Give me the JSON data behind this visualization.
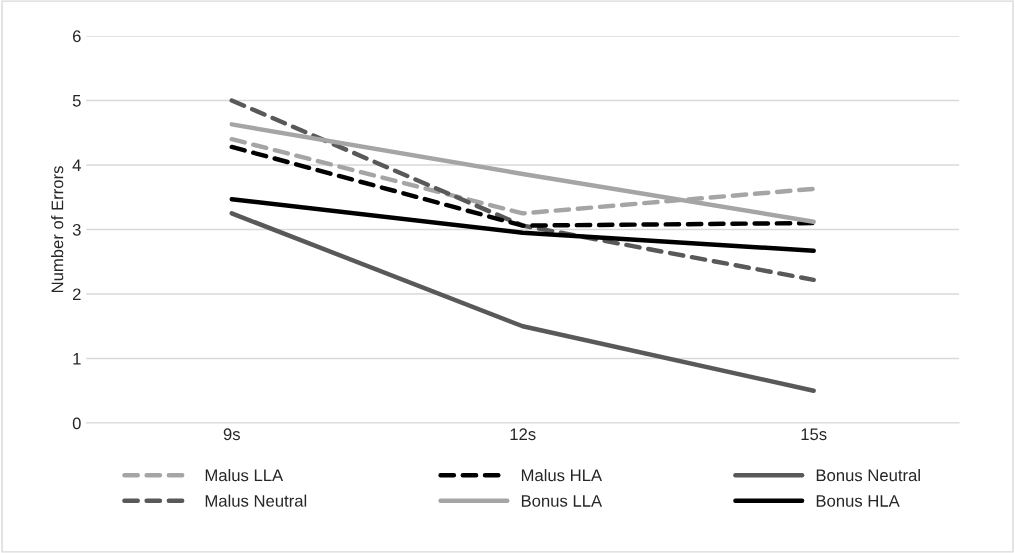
{
  "chart_data": {
    "type": "line",
    "ylabel": "Number of Errors",
    "categories": [
      "9s",
      "12s",
      "15s"
    ],
    "series": [
      {
        "name": "Malus LLA",
        "color": "#a5a5a5",
        "line_style": "dashed",
        "values": [
          4.4,
          3.25,
          3.63
        ]
      },
      {
        "name": "Malus Neutral",
        "color": "#595959",
        "line_style": "dashed",
        "values": [
          5.0,
          3.06,
          2.22
        ]
      },
      {
        "name": "Malus HLA",
        "color": "#000000",
        "line_style": "dashed",
        "values": [
          4.28,
          3.06,
          3.1
        ]
      },
      {
        "name": "Bonus LLA",
        "color": "#a5a5a5",
        "line_style": "solid",
        "values": [
          4.63,
          3.86,
          3.12
        ]
      },
      {
        "name": "Bonus Neutral",
        "color": "#595959",
        "line_style": "solid",
        "values": [
          3.25,
          1.5,
          0.5
        ]
      },
      {
        "name": "Bonus HLA",
        "color": "#000000",
        "line_style": "solid",
        "values": [
          3.47,
          2.95,
          2.67
        ]
      }
    ],
    "ylim": [
      0,
      6
    ],
    "yticks": [
      0,
      1,
      2,
      3,
      4,
      5,
      6
    ],
    "grid": "y",
    "legend": "bottom",
    "marker": "none"
  }
}
